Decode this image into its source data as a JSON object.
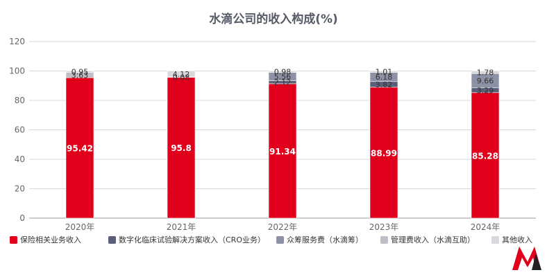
{
  "chart_data": {
    "type": "bar",
    "stacked": true,
    "title": "水滴公司的收入构成(%)",
    "categories": [
      "2020年",
      "2021年",
      "2022年",
      "2023年",
      "2024年"
    ],
    "ylim": [
      0,
      120
    ],
    "yticks": [
      0,
      20,
      40,
      60,
      80,
      100,
      120
    ],
    "grid": true,
    "legend_position": "bottom",
    "series": [
      {
        "name": "保险相关业务收入",
        "color": "#e0001b",
        "values": [
          95.42,
          95.8,
          91.34,
          88.99,
          85.28
        ]
      },
      {
        "name": "数字化临床试验解决方案收入（CRO业务）",
        "color": "#5a5e78",
        "values": [
          0,
          0,
          2.12,
          3.82,
          3.29
        ]
      },
      {
        "name": "众筹服务费（水滴筹）",
        "color": "#8d91a6",
        "values": [
          0,
          0.08,
          5.56,
          6.18,
          9.66
        ]
      },
      {
        "name": "管理费收入（水滴互助）",
        "color": "#bfbfc7",
        "values": [
          3.63,
          0,
          0,
          0,
          0
        ]
      },
      {
        "name": "其他收入",
        "color": "#d8d9dd",
        "values": [
          0.95,
          4.12,
          0.98,
          1.01,
          1.78
        ]
      }
    ],
    "data_labels": [
      [
        "95.42",
        "",
        "",
        "3.63",
        "0.95"
      ],
      [
        "95.8",
        "",
        "0.08",
        "",
        "4.12"
      ],
      [
        "91.34",
        "2.12",
        "5.56",
        "",
        "0.98"
      ],
      [
        "88.99",
        "3.82",
        "6.18",
        "",
        "1.01"
      ],
      [
        "85.28",
        "3.29",
        "9.66",
        "",
        "1.78"
      ]
    ]
  },
  "logo": {
    "icon": "brand-logo-icon",
    "colors": [
      "#e0001b",
      "#222222"
    ]
  }
}
